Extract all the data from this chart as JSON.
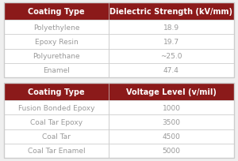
{
  "table1_header": [
    "Coating Type",
    "Dielectric Strength (kV/mm)"
  ],
  "table1_rows": [
    [
      "Polyethylene",
      "18.9"
    ],
    [
      "Epoxy Resin",
      "19.7"
    ],
    [
      "Polyurethane",
      "~25.0"
    ],
    [
      "Enamel",
      "47.4"
    ]
  ],
  "table2_header": [
    "Coating Type",
    "Voltage Level (v/mil)"
  ],
  "table2_rows": [
    [
      "Fusion Bonded Epoxy",
      "1000"
    ],
    [
      "Coal Tar Epoxy",
      "3500"
    ],
    [
      "Coal Tar",
      "4500"
    ],
    [
      "Coal Tar Enamel",
      "5000"
    ]
  ],
  "header_bg": "#8B1A1A",
  "header_fg": "#FFFFFF",
  "row_bg": "#FFFFFF",
  "row_fg": "#999999",
  "border_color": "#CCCCCC",
  "bg_color": "#EFEFEF",
  "col1_align": "center",
  "col2_align": "center",
  "header_fontsize": 7.0,
  "row_fontsize": 6.5
}
